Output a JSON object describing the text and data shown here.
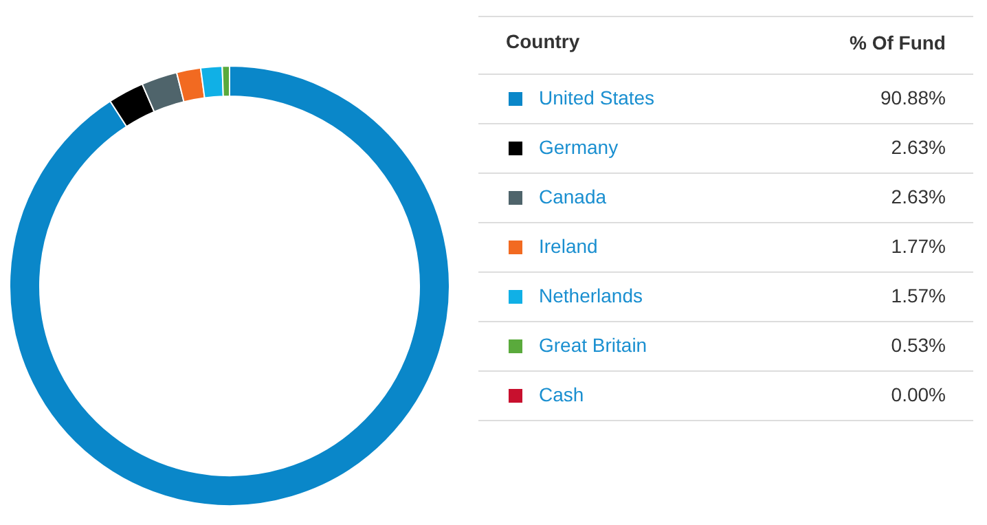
{
  "chart_data": {
    "type": "donut",
    "categories": [
      "United States",
      "Germany",
      "Canada",
      "Ireland",
      "Netherlands",
      "Great Britain",
      "Cash"
    ],
    "values": [
      90.88,
      2.63,
      2.63,
      1.77,
      1.57,
      0.53,
      0.0
    ],
    "value_labels": [
      "90.88%",
      "2.63%",
      "2.63%",
      "1.77%",
      "1.57%",
      "0.53%",
      "0.00%"
    ],
    "colors": [
      "#0a87c9",
      "#000000",
      "#4f646b",
      "#f26a21",
      "#10b0e6",
      "#5aaa3c",
      "#c8102e"
    ],
    "legend_title": "Country",
    "annotations": [
      "% Of Fund"
    ],
    "legend": "right"
  }
}
